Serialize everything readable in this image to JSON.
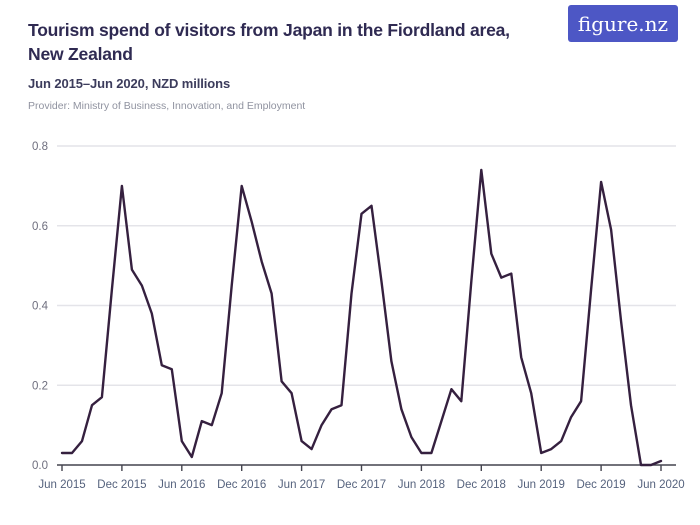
{
  "header": {
    "title_lines": [
      "Tourism spend of visitors from Japan in the Fiordland area,",
      "New Zealand"
    ],
    "subtitle": "Jun 2015–Jun 2020, NZD millions",
    "provider": "Provider: Ministry of Business, Innovation, and Employment",
    "logo_text": "figure.nz"
  },
  "colors": {
    "title": "#2f2a52",
    "subtitle": "#3c3c5c",
    "provider": "#9093a0",
    "logo_bg": "#4d57c5",
    "line": "#35203f",
    "gridline": "#e4e4e9",
    "axis": "#44444f",
    "y_tick_label": "#6e6e7e",
    "x_tick_label": "#55627d"
  },
  "chart_data": {
    "type": "line",
    "title": "Tourism spend of visitors from Japan in the Fiordland area, New Zealand",
    "subtitle": "Jun 2015–Jun 2020, NZD millions",
    "ylabel": "NZD millions",
    "xlabel": "",
    "grid": true,
    "legend_position": "none",
    "ylim": [
      0,
      0.8
    ],
    "y_ticks": [
      0,
      0.2,
      0.4,
      0.6,
      0.8
    ],
    "x_tick_every": 6,
    "x": [
      "Jun 2015",
      "Jul 2015",
      "Aug 2015",
      "Sep 2015",
      "Oct 2015",
      "Nov 2015",
      "Dec 2015",
      "Jan 2016",
      "Feb 2016",
      "Mar 2016",
      "Apr 2016",
      "May 2016",
      "Jun 2016",
      "Jul 2016",
      "Aug 2016",
      "Sep 2016",
      "Oct 2016",
      "Nov 2016",
      "Dec 2016",
      "Jan 2017",
      "Feb 2017",
      "Mar 2017",
      "Apr 2017",
      "May 2017",
      "Jun 2017",
      "Jul 2017",
      "Aug 2017",
      "Sep 2017",
      "Oct 2017",
      "Nov 2017",
      "Dec 2017",
      "Jan 2018",
      "Feb 2018",
      "Mar 2018",
      "Apr 2018",
      "May 2018",
      "Jun 2018",
      "Jul 2018",
      "Aug 2018",
      "Sep 2018",
      "Oct 2018",
      "Nov 2018",
      "Dec 2018",
      "Jan 2019",
      "Feb 2019",
      "Mar 2019",
      "Apr 2019",
      "May 2019",
      "Jun 2019",
      "Jul 2019",
      "Aug 2019",
      "Sep 2019",
      "Oct 2019",
      "Nov 2019",
      "Dec 2019",
      "Jan 2020",
      "Feb 2020",
      "Mar 2020",
      "Apr 2020",
      "May 2020",
      "Jun 2020"
    ],
    "values": [
      0.03,
      0.03,
      0.06,
      0.15,
      0.17,
      0.44,
      0.7,
      0.49,
      0.45,
      0.38,
      0.25,
      0.24,
      0.06,
      0.02,
      0.11,
      0.1,
      0.18,
      0.45,
      0.7,
      0.61,
      0.51,
      0.43,
      0.21,
      0.18,
      0.06,
      0.04,
      0.1,
      0.14,
      0.15,
      0.43,
      0.63,
      0.65,
      0.46,
      0.26,
      0.14,
      0.07,
      0.03,
      0.03,
      0.11,
      0.19,
      0.16,
      0.46,
      0.74,
      0.53,
      0.47,
      0.48,
      0.27,
      0.18,
      0.03,
      0.04,
      0.06,
      0.12,
      0.16,
      0.44,
      0.71,
      0.59,
      0.36,
      0.15,
      0.0,
      0.0,
      0.01
    ]
  }
}
